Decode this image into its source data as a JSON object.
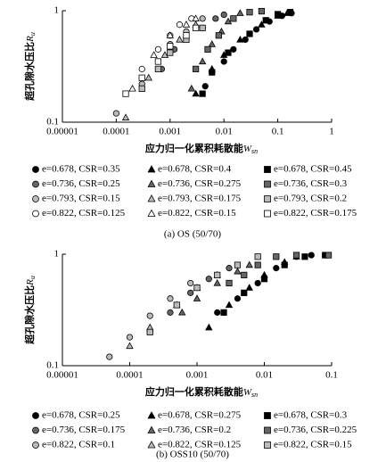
{
  "chart_data": [
    {
      "type": "scatter",
      "xscale": "log",
      "yscale": "log",
      "x_label": {
        "text": "应力归一化累积耗散能",
        "symbol": "W",
        "subscript": "sn"
      },
      "y_label": {
        "text": "超孔隙水压比",
        "symbol": "R",
        "subscript": "u"
      },
      "caption": "(a) OS (50/70)",
      "xlim": [
        1e-05,
        1
      ],
      "ylim": [
        0.1,
        1
      ],
      "xticks": [
        {
          "value": 1e-05,
          "label": "0.00001"
        },
        {
          "value": 0.0001,
          "label": "0.0001"
        },
        {
          "value": 0.001,
          "label": "0.001"
        },
        {
          "value": 0.01,
          "label": "0.01"
        },
        {
          "value": 0.1,
          "label": "0.1"
        },
        1
      ],
      "yticks": [
        0.1,
        1
      ],
      "series": [
        {
          "name": "e=0.678, CSR=0.35",
          "marker": "circle",
          "color": "#000000",
          "x": [
            0.0045,
            0.006,
            0.01,
            0.015,
            0.025,
            0.04,
            0.07,
            0.12,
            0.18
          ],
          "y": [
            0.21,
            0.28,
            0.35,
            0.45,
            0.55,
            0.68,
            0.8,
            0.9,
            0.95
          ]
        },
        {
          "name": "e=0.678, CSR=0.4",
          "marker": "triangle",
          "color": "#000000",
          "x": [
            0.003,
            0.006,
            0.01,
            0.02,
            0.05,
            0.1,
            0.15
          ],
          "y": [
            0.18,
            0.3,
            0.4,
            0.55,
            0.75,
            0.9,
            0.95
          ]
        },
        {
          "name": "e=0.678, CSR=0.45",
          "marker": "square",
          "color": "#000000",
          "x": [
            0.004,
            0.006,
            0.012,
            0.03,
            0.06,
            0.1,
            0.17
          ],
          "y": [
            0.18,
            0.28,
            0.42,
            0.62,
            0.82,
            0.93,
            0.97
          ]
        },
        {
          "name": "e=0.736, CSR=0.25",
          "marker": "circle",
          "color": "#666666",
          "x": [
            0.0007,
            0.0012,
            0.002,
            0.004,
            0.007,
            0.01
          ],
          "y": [
            0.3,
            0.45,
            0.55,
            0.7,
            0.85,
            0.92
          ]
        },
        {
          "name": "e=0.736, CSR=0.275",
          "marker": "triangle",
          "color": "#666666",
          "x": [
            0.0025,
            0.004,
            0.006,
            0.009,
            0.012,
            0.02
          ],
          "y": [
            0.2,
            0.35,
            0.5,
            0.65,
            0.8,
            0.95
          ]
        },
        {
          "name": "e=0.736, CSR=0.3",
          "marker": "square",
          "color": "#666666",
          "x": [
            0.003,
            0.005,
            0.008,
            0.015,
            0.03,
            0.05
          ],
          "y": [
            0.3,
            0.45,
            0.6,
            0.85,
            0.97,
            0.99
          ]
        },
        {
          "name": "e=0.793, CSR=0.15",
          "marker": "circle",
          "color": "#bbbbbb",
          "x": [
            0.0001,
            0.0003,
            0.0006,
            0.001,
            0.002,
            0.004
          ],
          "y": [
            0.12,
            0.22,
            0.35,
            0.5,
            0.65,
            0.85
          ]
        },
        {
          "name": "e=0.793, CSR=0.175",
          "marker": "triangle",
          "color": "#bbbbbb",
          "x": [
            0.00015,
            0.0004,
            0.0008,
            0.0015,
            0.003
          ],
          "y": [
            0.11,
            0.25,
            0.4,
            0.55,
            0.75
          ]
        },
        {
          "name": "e=0.793, CSR=0.2",
          "marker": "square",
          "color": "#bbbbbb",
          "x": [
            0.0003,
            0.0006,
            0.001,
            0.002,
            0.004
          ],
          "y": [
            0.2,
            0.3,
            0.42,
            0.55,
            0.7
          ]
        },
        {
          "name": "e=0.822, CSR=0.125",
          "marker": "circle",
          "color": "#ffffff",
          "x": [
            0.0003,
            0.0006,
            0.001,
            0.0015,
            0.0025
          ],
          "y": [
            0.3,
            0.45,
            0.6,
            0.75,
            0.85
          ]
        },
        {
          "name": "e=0.822, CSR=0.15",
          "marker": "triangle",
          "color": "#ffffff",
          "x": [
            0.0002,
            0.0005,
            0.001,
            0.002,
            0.003
          ],
          "y": [
            0.2,
            0.4,
            0.6,
            0.75,
            0.85
          ]
        },
        {
          "name": "e=0.822, CSR=0.175",
          "marker": "square",
          "color": "#ffffff",
          "x": [
            0.00015,
            0.0003,
            0.0006,
            0.001,
            0.002,
            0.003
          ],
          "y": [
            0.18,
            0.25,
            0.35,
            0.48,
            0.6,
            0.7
          ]
        }
      ]
    },
    {
      "type": "scatter",
      "xscale": "log",
      "yscale": "log",
      "x_label": {
        "text": "应力归一化累积耗散能",
        "symbol": "W",
        "subscript": "sn"
      },
      "y_label": {
        "text": "超孔隙水压比",
        "symbol": "R",
        "subscript": "u"
      },
      "caption": "(b) OSS10 (50/70)",
      "xlim": [
        1e-05,
        0.1
      ],
      "ylim": [
        0.1,
        1
      ],
      "xticks": [
        {
          "value": 1e-05,
          "label": "0.00001"
        },
        {
          "value": 0.0001,
          "label": "0.0001"
        },
        {
          "value": 0.001,
          "label": "0.001"
        },
        {
          "value": 0.01,
          "label": "0.01"
        },
        {
          "value": 0.1,
          "label": "0.1"
        }
      ],
      "yticks": [
        0.1,
        1
      ],
      "series": [
        {
          "name": "e=0.678, CSR=0.25",
          "marker": "circle",
          "color": "#000000",
          "x": [
            0.002,
            0.004,
            0.008,
            0.015,
            0.03,
            0.05
          ],
          "y": [
            0.3,
            0.4,
            0.55,
            0.75,
            0.95,
            0.98
          ]
        },
        {
          "name": "e=0.678, CSR=0.275",
          "marker": "triangle",
          "color": "#000000",
          "x": [
            0.0015,
            0.003,
            0.006,
            0.01,
            0.02,
            0.03
          ],
          "y": [
            0.22,
            0.35,
            0.5,
            0.65,
            0.85,
            0.95
          ]
        },
        {
          "name": "e=0.678, CSR=0.3",
          "marker": "square",
          "color": "#000000",
          "x": [
            0.0025,
            0.005,
            0.01,
            0.02,
            0.04,
            0.08
          ],
          "y": [
            0.3,
            0.45,
            0.6,
            0.8,
            0.95,
            0.98
          ]
        },
        {
          "name": "e=0.736, CSR=0.175",
          "marker": "circle",
          "color": "#666666",
          "x": [
            0.0002,
            0.0004,
            0.0008,
            0.0015,
            0.003
          ],
          "y": [
            0.2,
            0.3,
            0.45,
            0.6,
            0.75
          ]
        },
        {
          "name": "e=0.736, CSR=0.2",
          "marker": "triangle",
          "color": "#666666",
          "x": [
            0.0006,
            0.001,
            0.002,
            0.004,
            0.006
          ],
          "y": [
            0.3,
            0.4,
            0.55,
            0.7,
            0.8
          ]
        },
        {
          "name": "e=0.736, CSR=0.225",
          "marker": "square",
          "color": "#666666",
          "x": [
            0.003,
            0.005,
            0.008,
            0.015,
            0.03,
            0.09
          ],
          "y": [
            0.55,
            0.65,
            0.8,
            0.95,
            0.98,
            0.98
          ]
        },
        {
          "name": "e=0.822, CSR=0.1",
          "marker": "circle",
          "color": "#bbbbbb",
          "x": [
            5e-05,
            0.0001,
            0.0002,
            0.0004,
            0.0008
          ],
          "y": [
            0.12,
            0.18,
            0.28,
            0.4,
            0.55
          ]
        },
        {
          "name": "e=0.822, CSR=0.125",
          "marker": "triangle",
          "color": "#bbbbbb",
          "x": [
            0.0001,
            0.0002,
            0.0005,
            0.001,
            0.002
          ],
          "y": [
            0.15,
            0.22,
            0.35,
            0.5,
            0.65
          ]
        },
        {
          "name": "e=0.822, CSR=0.15",
          "marker": "square",
          "color": "#bbbbbb",
          "x": [
            0.0002,
            0.0005,
            0.001,
            0.002,
            0.004,
            0.008
          ],
          "y": [
            0.2,
            0.35,
            0.5,
            0.65,
            0.8,
            0.95
          ]
        }
      ]
    }
  ]
}
